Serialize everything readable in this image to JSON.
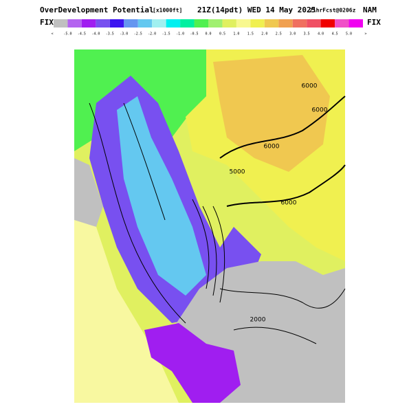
{
  "header": {
    "title": "OverDevelopment Potential",
    "units": "[x1000ft]",
    "valid": "21Z(14pdt) WED 14 May 2025",
    "forecast": "21hrFcst@0206z",
    "model": "NAM",
    "left_label": "FIX",
    "right_label": "FIX"
  },
  "colorbar": {
    "low_end": "<",
    "high_end": ">",
    "labels": [
      "-5.0",
      "-4.5",
      "-4.0",
      "-3.5",
      "-3.0",
      "-2.5",
      "-2.0",
      "-1.5",
      "-1.0",
      "-0.5",
      "0.0",
      "0.5",
      "1.0",
      "1.5",
      "2.0",
      "2.5",
      "3.0",
      "3.5",
      "4.0",
      "4.5",
      "5.0"
    ],
    "colors": [
      "#c0c0c0",
      "#b464f0",
      "#a01ef0",
      "#7850f0",
      "#3c14f0",
      "#6496f0",
      "#64c8f0",
      "#a0f0f0",
      "#00f0f0",
      "#00f0a0",
      "#50f050",
      "#a0f070",
      "#e0f060",
      "#f8f890",
      "#f0f050",
      "#f0c850",
      "#f0a050",
      "#f07060",
      "#f05064",
      "#f00000",
      "#f050c8",
      "#f000f0"
    ]
  },
  "map": {
    "contour_labels": [
      "6000",
      "6000",
      "6000",
      "5000",
      "6000",
      "2000"
    ]
  }
}
